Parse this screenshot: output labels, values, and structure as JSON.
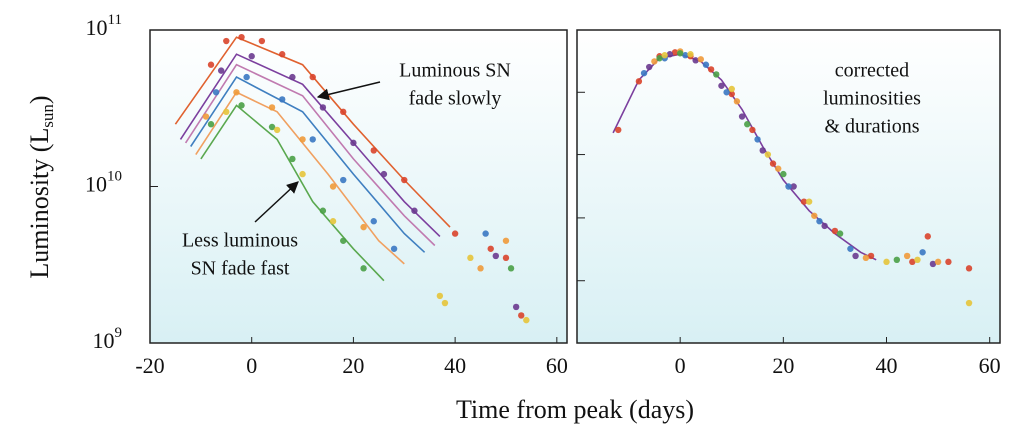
{
  "chart_data": [
    {
      "type": "line",
      "log_y": true,
      "ylabel": {
        "text": "Luminosity (L",
        "sub": "sun",
        "close": ")"
      },
      "xlabel": "Time from peak (days)",
      "xlim": [
        -20,
        62
      ],
      "xticks": [
        -20,
        0,
        20,
        40,
        60
      ],
      "ylim": [
        1000000000.0,
        100000000000.0
      ],
      "yticks": [
        {
          "value": 100000000000.0,
          "label": "10",
          "exponent": "11"
        },
        {
          "value": 10000000000.0,
          "label": "10",
          "exponent": "10"
        },
        {
          "value": 1000000000.0,
          "label": "10",
          "exponent": "9"
        }
      ],
      "annotations": [
        [
          "Luminous SN",
          "fade slowly"
        ],
        [
          "Less luminous",
          "SN fade fast"
        ]
      ],
      "series": [
        {
          "mode": "line",
          "color": "#e0612f",
          "x": [
            -15,
            -3,
            10,
            20,
            30,
            39
          ],
          "values": [
            25000000000.0,
            90000000000.0,
            60000000000.0,
            25000000000.0,
            11000000000.0,
            5500000000.0
          ]
        },
        {
          "mode": "line",
          "color": "#c07ab0",
          "x": [
            -13,
            -3,
            10,
            20,
            30,
            36
          ],
          "values": [
            19000000000.0,
            60000000000.0,
            38000000000.0,
            15000000000.0,
            6500000000.0,
            4200000000.0
          ]
        },
        {
          "mode": "line",
          "color": "#7b3f9e",
          "x": [
            -14,
            -3,
            10,
            20,
            30,
            37
          ],
          "values": [
            20000000000.0,
            70000000000.0,
            45000000000.0,
            19000000000.0,
            8000000000.0,
            4800000000.0
          ]
        },
        {
          "mode": "line",
          "color": "#3f7fc0",
          "x": [
            -12,
            -3,
            10,
            20,
            30,
            34
          ],
          "values": [
            18000000000.0,
            50000000000.0,
            30000000000.0,
            12000000000.0,
            5000000000.0,
            3800000000.0
          ]
        },
        {
          "mode": "line",
          "color": "#f0a060",
          "x": [
            -11,
            -3,
            5,
            15,
            25,
            30
          ],
          "values": [
            16000000000.0,
            40000000000.0,
            30000000000.0,
            12000000000.0,
            4500000000.0,
            3200000000.0
          ]
        },
        {
          "mode": "line",
          "color": "#5aa84f",
          "x": [
            -10,
            -3,
            5,
            12,
            20,
            26
          ],
          "values": [
            15000000000.0,
            33000000000.0,
            20000000000.0,
            8000000000.0,
            4000000000.0,
            2500000000.0
          ]
        },
        {
          "mode": "markers",
          "color": "#d9442b",
          "x": [
            -8,
            -5,
            -2,
            2,
            6,
            12,
            18,
            24,
            30,
            40,
            47,
            50,
            53
          ],
          "values": [
            60000000000.0,
            85000000000.0,
            90000000000.0,
            85000000000.0,
            70000000000.0,
            50000000000.0,
            30000000000.0,
            17000000000.0,
            11000000000.0,
            5000000000.0,
            4000000000.0,
            3500000000.0,
            1500000000.0
          ]
        },
        {
          "mode": "markers",
          "color": "#6a3a8f",
          "x": [
            -6,
            0,
            8,
            14,
            20,
            26,
            32,
            48,
            52
          ],
          "values": [
            55000000000.0,
            68000000000.0,
            50000000000.0,
            32000000000.0,
            19000000000.0,
            12000000000.0,
            7000000000.0,
            3600000000.0,
            1700000000.0
          ]
        },
        {
          "mode": "markers",
          "color": "#3a78c2",
          "x": [
            -7,
            -1,
            6,
            12,
            18,
            24,
            28,
            46
          ],
          "values": [
            40000000000.0,
            50000000000.0,
            36000000000.0,
            20000000000.0,
            11000000000.0,
            6000000000.0,
            4000000000.0,
            5000000000.0
          ]
        },
        {
          "mode": "markers",
          "color": "#f09a3a",
          "x": [
            -9,
            -3,
            4,
            10,
            16,
            22,
            45,
            50
          ],
          "values": [
            28000000000.0,
            40000000000.0,
            32000000000.0,
            20000000000.0,
            10000000000.0,
            5500000000.0,
            3000000000.0,
            4500000000.0
          ]
        },
        {
          "mode": "markers",
          "color": "#4aa046",
          "x": [
            -8,
            -2,
            4,
            8,
            14,
            18,
            22,
            51
          ],
          "values": [
            25000000000.0,
            33000000000.0,
            24000000000.0,
            15000000000.0,
            7000000000.0,
            4500000000.0,
            3000000000.0,
            3000000000.0
          ]
        },
        {
          "mode": "markers",
          "color": "#e6c43a",
          "x": [
            -5,
            5,
            10,
            16,
            37,
            38,
            43,
            54
          ],
          "values": [
            30000000000.0,
            23000000000.0,
            12000000000.0,
            6000000000.0,
            2000000000.0,
            1800000000.0,
            3500000000.0,
            1400000000.0
          ]
        }
      ]
    },
    {
      "type": "line",
      "log_y": true,
      "xlim": [
        -20,
        62
      ],
      "xticks": [
        0,
        20,
        40,
        60
      ],
      "ylim": [
        1000000000.0,
        100000000000.0
      ],
      "yticks": [
        100000000000.0,
        40000000000.0,
        16000000000.0,
        6300000000.0,
        2500000000.0,
        1000000000.0
      ],
      "ytick_labels": false,
      "annotations": [
        [
          "corrected",
          "luminosities",
          "& durations"
        ]
      ],
      "series": [
        {
          "mode": "line",
          "color": "#7b3f9e",
          "x": [
            -13,
            -8,
            -4,
            0,
            4,
            8,
            12,
            16,
            20,
            25,
            30,
            35,
            38
          ],
          "values": [
            22000000000.0,
            48000000000.0,
            66000000000.0,
            70000000000.0,
            63000000000.0,
            48000000000.0,
            31000000000.0,
            18000000000.0,
            11000000000.0,
            7000000000.0,
            5000000000.0,
            3800000000.0,
            3400000000.0
          ]
        },
        {
          "mode": "markers",
          "color": "#d9442b",
          "x": [
            -12,
            -8,
            -4,
            -1,
            2,
            6,
            10,
            14,
            18,
            24,
            30,
            37,
            45,
            48,
            52,
            56
          ],
          "values": [
            23000000000.0,
            47000000000.0,
            68000000000.0,
            72000000000.0,
            68000000000.0,
            56000000000.0,
            39000000000.0,
            23000000000.0,
            14000000000.0,
            8000000000.0,
            5200000000.0,
            3600000000.0,
            3300000000.0,
            4800000000.0,
            3300000000.0,
            3000000000.0
          ]
        },
        {
          "mode": "markers",
          "color": "#6a3a8f",
          "x": [
            -6,
            -2,
            3,
            8,
            12,
            16,
            22,
            28,
            34,
            49
          ],
          "values": [
            58000000000.0,
            70000000000.0,
            64000000000.0,
            44000000000.0,
            28000000000.0,
            17000000000.0,
            10000000000.0,
            5600000000.0,
            3600000000.0,
            3200000000.0
          ]
        },
        {
          "mode": "markers",
          "color": "#3a78c2",
          "x": [
            -7,
            -3,
            1,
            5,
            9,
            15,
            21,
            27,
            33,
            47
          ],
          "values": [
            53000000000.0,
            66000000000.0,
            69000000000.0,
            60000000000.0,
            40000000000.0,
            20000000000.0,
            10000000000.0,
            6000000000.0,
            4000000000.0,
            3800000000.0
          ]
        },
        {
          "mode": "markers",
          "color": "#f09a3a",
          "x": [
            -5,
            0,
            4,
            11,
            19,
            26,
            36,
            44,
            50
          ],
          "values": [
            63000000000.0,
            73000000000.0,
            65000000000.0,
            35000000000.0,
            13000000000.0,
            6500000000.0,
            3500000000.0,
            3600000000.0,
            3300000000.0
          ]
        },
        {
          "mode": "markers",
          "color": "#4aa046",
          "x": [
            -4,
            0,
            7,
            13,
            20,
            31,
            42
          ],
          "values": [
            66000000000.0,
            71000000000.0,
            52000000000.0,
            25000000000.0,
            12000000000.0,
            5000000000.0,
            3400000000.0
          ]
        },
        {
          "mode": "markers",
          "color": "#e6c43a",
          "x": [
            -3,
            2,
            10,
            17,
            25,
            40,
            46,
            56
          ],
          "values": [
            69000000000.0,
            70000000000.0,
            42000000000.0,
            16000000000.0,
            8000000000.0,
            3300000000.0,
            3400000000.0,
            1800000000.0
          ]
        }
      ]
    }
  ]
}
